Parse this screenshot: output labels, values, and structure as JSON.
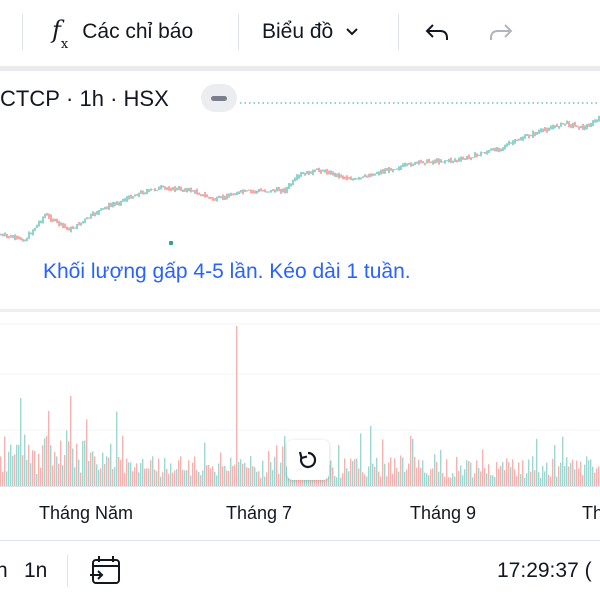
{
  "toolbar": {
    "indicators_icon": "fx-icon",
    "indicators_label": "Các chỉ báo",
    "chart_type_label": "Biểu đồ",
    "chart_type_icon": "chevron-down-icon",
    "undo_icon": "undo-icon",
    "redo_icon": "redo-icon"
  },
  "chart": {
    "symbol": "CTCP",
    "interval": "1h",
    "exchange": "HSX",
    "separator": "·",
    "annotation_text": "Khối lượng gấp 4-5 lần. Kéo dài 1 tuần.",
    "colors": {
      "up": "#26a69a",
      "down": "#ef5350",
      "vol_up": "#9fd6cf",
      "vol_down": "#f4b3b1",
      "annotation": "#2962ff"
    }
  },
  "time_axis": {
    "labels": [
      "Tháng Năm",
      "Tháng 7",
      "Tháng 9",
      "Th"
    ]
  },
  "bottom_bar": {
    "range_left": "n",
    "range_1n": "1n",
    "date_range_icon": "calendar-range-icon",
    "clock": "17:29:37 (",
    "reset_icon": "reset-icon"
  }
}
